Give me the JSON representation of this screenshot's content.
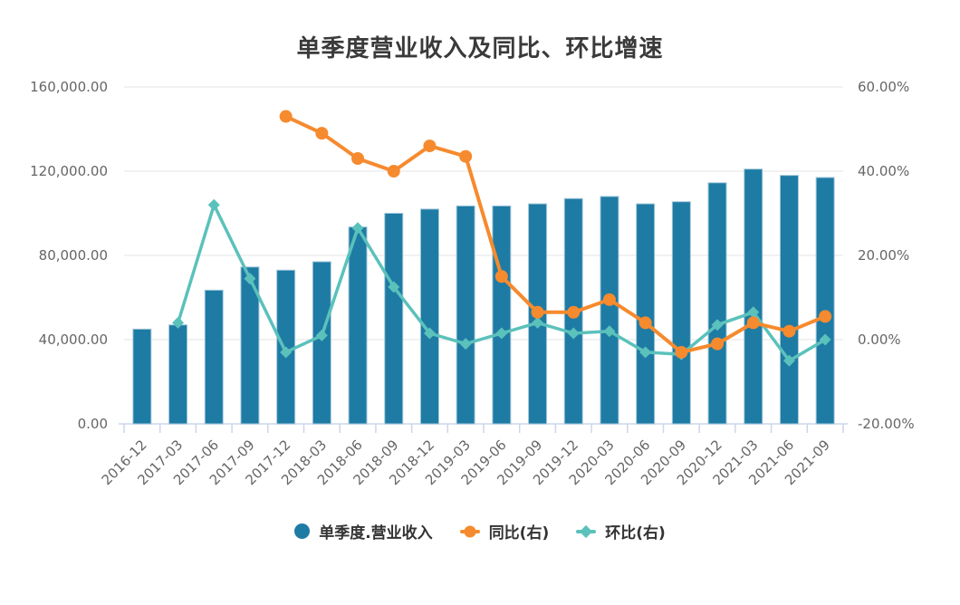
{
  "page": {
    "background": "#ffffff"
  },
  "chart_data": {
    "type": "bar",
    "subtype": "bar+line combo, dual y-axes",
    "title": "单季度营业收入及同比、环比增速",
    "categories": [
      "2016-12",
      "2017-03",
      "2017-06",
      "2017-09",
      "2017-12",
      "2018-03",
      "2018-06",
      "2018-09",
      "2018-12",
      "2019-03",
      "2019-06",
      "2019-09",
      "2019-12",
      "2020-03",
      "2020-06",
      "2020-09",
      "2020-12",
      "2021-03",
      "2021-06",
      "2021-09"
    ],
    "series": [
      {
        "name": "单季度.营业收入",
        "type": "bar",
        "axis": "left",
        "color": "#1E7BA4",
        "values": [
          45000,
          47000,
          63500,
          74500,
          73000,
          77000,
          93500,
          100000,
          102000,
          103500,
          103500,
          104500,
          107000,
          108000,
          104500,
          105500,
          114500,
          121000,
          118000,
          117000
        ]
      },
      {
        "name": "同比(右)",
        "type": "line",
        "axis": "right",
        "marker": "circle",
        "color": "#F68A2E",
        "values": [
          null,
          null,
          null,
          null,
          53,
          49,
          43,
          40,
          46,
          43.5,
          15,
          6.5,
          6.5,
          9.5,
          4,
          -3,
          -1,
          4,
          2,
          5.5
        ]
      },
      {
        "name": "环比(右)",
        "type": "line",
        "axis": "right",
        "marker": "diamond",
        "color": "#5BC1BB",
        "values": [
          null,
          4,
          32,
          14.5,
          -3,
          1,
          26.5,
          12.5,
          1.5,
          -1,
          1.5,
          4,
          1.5,
          2,
          -3,
          -3.5,
          3.5,
          6.5,
          -5,
          0
        ]
      }
    ],
    "left_axis": {
      "min": 0,
      "max": 160000,
      "tick_labels": [
        "160,000.00",
        "120,000.00",
        "80,000.00",
        "40,000.00",
        "0.00"
      ]
    },
    "right_axis": {
      "min": -20,
      "max": 60,
      "tick_labels": [
        "60.00%",
        "40.00%",
        "20.00%",
        "0.00%",
        "-20.00%"
      ]
    },
    "grid": "horizontal",
    "legend_position": "bottom",
    "styles": {
      "gridline_color": "#E6E6E6",
      "axis_line_color": "#CCD6EB",
      "axis_text_color": "#666666",
      "bar_border_color": "#A3C8DB",
      "title_color": "#3A3A3A",
      "legend_text_color": "#333333"
    }
  }
}
